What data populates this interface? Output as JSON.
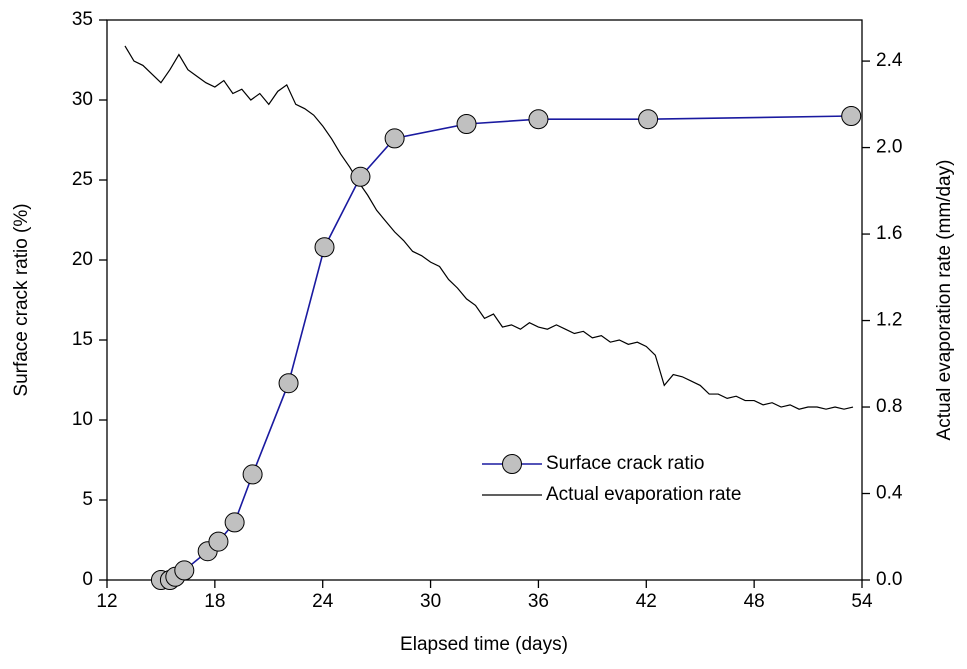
{
  "chart_data": {
    "type": "line",
    "xlabel": "Elapsed time (days)",
    "ylabel": "Surface crack ratio (%)",
    "y2label": "Actual evaporation rate (mm/day)",
    "xlim": [
      12,
      54
    ],
    "xticks": [
      12,
      18,
      24,
      30,
      36,
      42,
      48,
      54
    ],
    "ylim": [
      0,
      35
    ],
    "yticks": [
      0,
      5,
      10,
      15,
      20,
      25,
      30,
      35
    ],
    "y2lim": [
      0,
      2.59
    ],
    "y2ticks": [
      {
        "value": 0,
        "label": "0.0"
      },
      0.4,
      0.8,
      1.2,
      1.6,
      {
        "value": 2,
        "label": "2.0"
      },
      2.4
    ],
    "series": [
      {
        "name": "Surface crack ratio",
        "color": "#1a1aa0",
        "marker_fill": "#c0c0c0",
        "x": [
          15,
          15.5,
          15.8,
          16.3,
          17.6,
          18.2,
          19.1,
          20.1,
          22.1,
          24.1,
          26.1,
          28.0,
          32.0,
          36.0,
          42.1,
          53.4
        ],
        "values": [
          0,
          0,
          0.2,
          0.6,
          1.8,
          2.4,
          3.6,
          6.6,
          12.3,
          20.8,
          25.2,
          27.6,
          28.5,
          28.8,
          28.8,
          29.0
        ]
      },
      {
        "name": "Actual evaporation rate",
        "color": "#000000",
        "axis": "y2",
        "x": [
          13,
          13.5,
          14,
          14.5,
          15,
          15.5,
          16,
          16.5,
          17,
          17.5,
          18,
          18.5,
          19,
          19.5,
          20,
          20.5,
          21,
          21.5,
          22,
          22.5,
          23,
          23.5,
          24,
          24.5,
          25,
          25.5,
          26,
          26.5,
          27,
          27.5,
          28,
          28.5,
          29,
          29.5,
          30,
          30.5,
          31,
          31.5,
          32,
          32.5,
          33,
          33.5,
          34,
          34.5,
          35,
          35.5,
          36,
          36.5,
          37,
          37.5,
          38,
          38.5,
          39,
          39.5,
          40,
          40.5,
          41,
          41.5,
          42,
          42.5,
          43,
          43.5,
          44,
          44.5,
          45,
          45.5,
          46,
          46.5,
          47,
          47.5,
          48,
          48.5,
          49,
          49.5,
          50,
          50.5,
          51,
          51.5,
          52,
          52.5,
          53,
          53.5
        ],
        "values": [
          2.47,
          2.4,
          2.38,
          2.34,
          2.3,
          2.36,
          2.43,
          2.36,
          2.33,
          2.3,
          2.28,
          2.31,
          2.25,
          2.27,
          2.22,
          2.25,
          2.2,
          2.26,
          2.29,
          2.2,
          2.18,
          2.15,
          2.1,
          2.04,
          1.97,
          1.91,
          1.84,
          1.78,
          1.71,
          1.66,
          1.61,
          1.57,
          1.52,
          1.5,
          1.47,
          1.45,
          1.39,
          1.35,
          1.3,
          1.27,
          1.21,
          1.23,
          1.17,
          1.18,
          1.16,
          1.19,
          1.17,
          1.16,
          1.18,
          1.16,
          1.14,
          1.15,
          1.12,
          1.13,
          1.1,
          1.11,
          1.09,
          1.1,
          1.08,
          1.04,
          0.9,
          0.95,
          0.94,
          0.92,
          0.9,
          0.86,
          0.86,
          0.84,
          0.85,
          0.83,
          0.83,
          0.81,
          0.82,
          0.8,
          0.81,
          0.79,
          0.8,
          0.8,
          0.79,
          0.8,
          0.79,
          0.8
        ]
      }
    ]
  }
}
